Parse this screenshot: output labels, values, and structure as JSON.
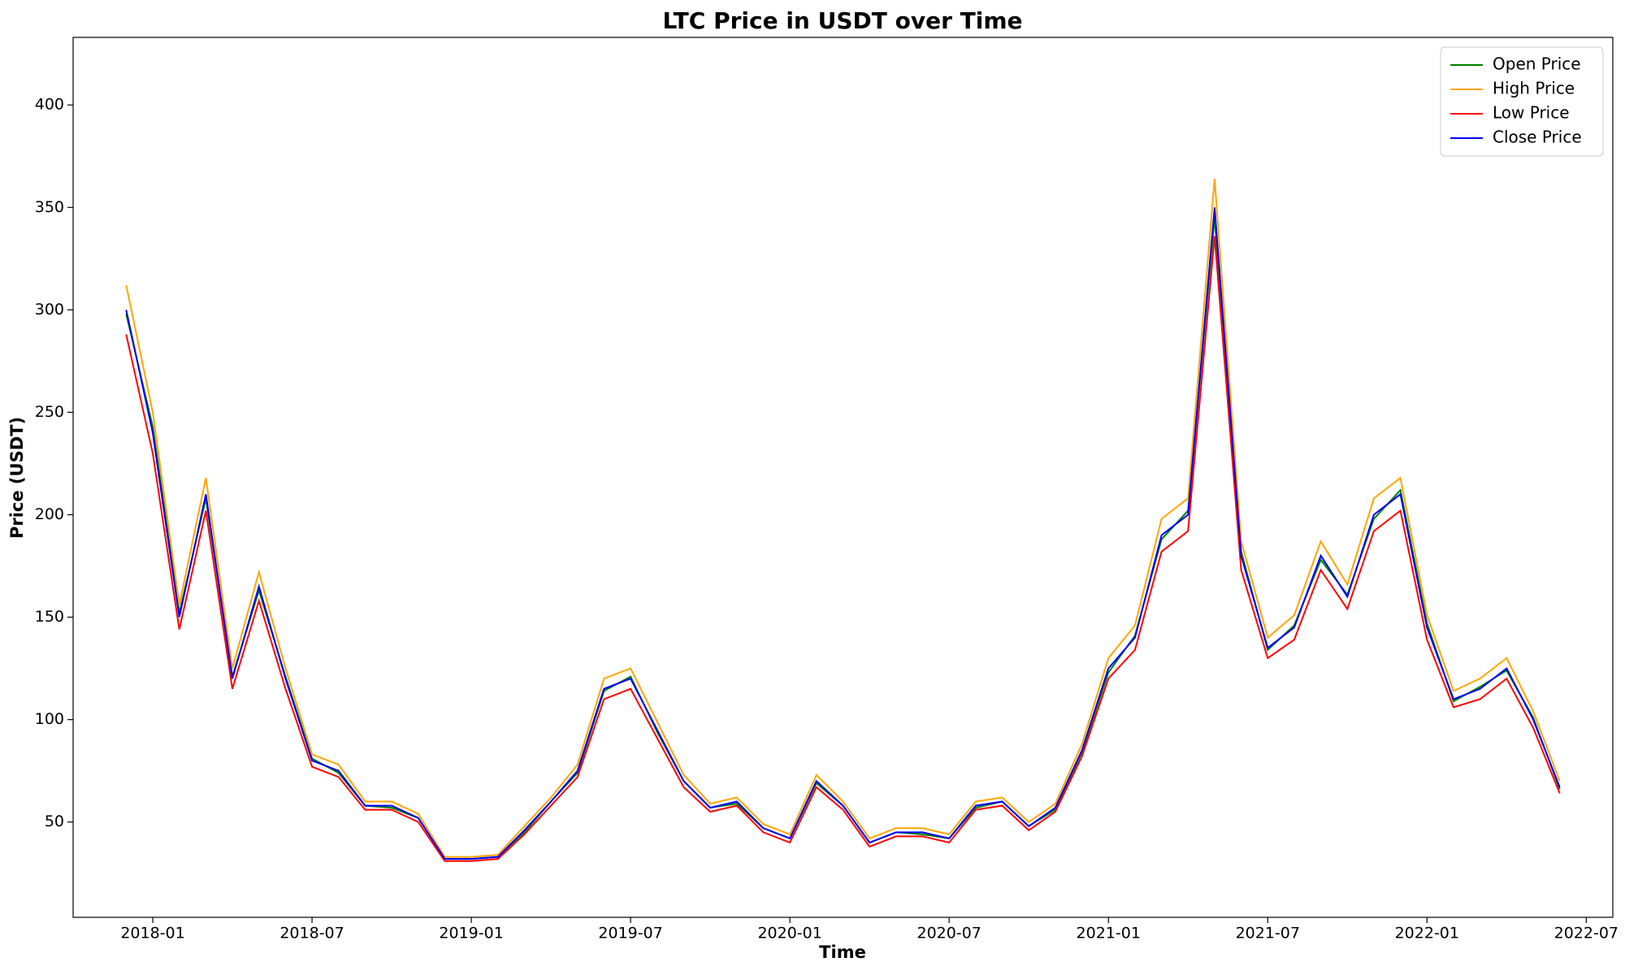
{
  "chart_data": {
    "type": "line",
    "title": "LTC Price in USDT over Time",
    "xlabel": "Time",
    "ylabel": "Price (USDT)",
    "x": [
      "2017-12",
      "2018-01",
      "2018-02",
      "2018-03",
      "2018-04",
      "2018-05",
      "2018-06",
      "2018-07",
      "2018-08",
      "2018-09",
      "2018-10",
      "2018-11",
      "2018-12",
      "2019-01",
      "2019-02",
      "2019-03",
      "2019-04",
      "2019-05",
      "2019-06",
      "2019-07",
      "2019-08",
      "2019-09",
      "2019-10",
      "2019-11",
      "2019-12",
      "2020-01",
      "2020-02",
      "2020-03",
      "2020-04",
      "2020-05",
      "2020-06",
      "2020-07",
      "2020-08",
      "2020-09",
      "2020-10",
      "2020-11",
      "2020-12",
      "2021-01",
      "2021-02",
      "2021-03",
      "2021-04",
      "2021-05",
      "2021-06",
      "2021-07",
      "2021-08",
      "2021-09",
      "2021-10",
      "2021-11",
      "2021-12",
      "2022-01",
      "2022-02",
      "2022-03",
      "2022-04",
      "2022-05",
      "2022-06"
    ],
    "series": [
      {
        "name": "Open Price",
        "color": "green",
        "values": [
          298,
          243,
          152,
          208,
          121,
          163,
          121,
          81,
          74,
          58,
          57,
          52,
          32,
          32,
          33,
          45,
          60,
          74,
          114,
          121,
          94,
          70,
          57,
          59,
          47,
          42,
          69,
          58,
          40,
          45,
          44,
          42,
          57,
          60,
          48,
          56,
          84,
          123,
          141,
          188,
          202,
          345,
          182,
          134,
          146,
          178,
          161,
          198,
          212,
          147,
          109,
          116,
          124,
          101,
          66
        ]
      },
      {
        "name": "High Price",
        "color": "orange",
        "values": [
          312,
          250,
          156,
          218,
          125,
          172,
          125,
          83,
          78,
          60,
          60,
          54,
          33,
          33,
          34,
          48,
          62,
          78,
          120,
          125,
          99,
          73,
          59,
          62,
          49,
          44,
          73,
          60,
          42,
          47,
          47,
          44,
          60,
          62,
          50,
          59,
          88,
          130,
          146,
          198,
          208,
          364,
          187,
          140,
          151,
          187,
          166,
          208,
          218,
          151,
          114,
          120,
          130,
          104,
          70
        ]
      },
      {
        "name": "Low Price",
        "color": "red",
        "values": [
          288,
          230,
          144,
          202,
          115,
          158,
          115,
          77,
          72,
          56,
          56,
          50,
          31,
          31,
          32,
          44,
          58,
          72,
          110,
          115,
          91,
          67,
          55,
          58,
          45,
          40,
          67,
          56,
          38,
          43,
          43,
          40,
          56,
          58,
          46,
          55,
          82,
          120,
          134,
          182,
          192,
          336,
          173,
          130,
          139,
          173,
          154,
          192,
          202,
          139,
          106,
          110,
          120,
          96,
          64
        ]
      },
      {
        "name": "Close Price",
        "color": "blue",
        "values": [
          300,
          240,
          150,
          210,
          120,
          165,
          120,
          80,
          75,
          58,
          58,
          52,
          32,
          32,
          33,
          46,
          60,
          75,
          115,
          120,
          95,
          70,
          57,
          60,
          47,
          42,
          70,
          58,
          40,
          45,
          45,
          42,
          58,
          60,
          48,
          57,
          85,
          125,
          140,
          190,
          200,
          350,
          180,
          135,
          145,
          180,
          160,
          200,
          210,
          145,
          110,
          115,
          125,
          100,
          67
        ]
      }
    ],
    "xlim": [
      "2017-10",
      "2022-08"
    ],
    "xticks": [
      "2018-01",
      "2018-07",
      "2019-01",
      "2019-07",
      "2020-01",
      "2020-07",
      "2021-01",
      "2021-07",
      "2022-01",
      "2022-07"
    ],
    "ylim": [
      3.5,
      433
    ],
    "yticks": [
      50,
      100,
      150,
      200,
      250,
      300,
      350,
      400
    ],
    "grid": false,
    "legend": "upper right"
  }
}
